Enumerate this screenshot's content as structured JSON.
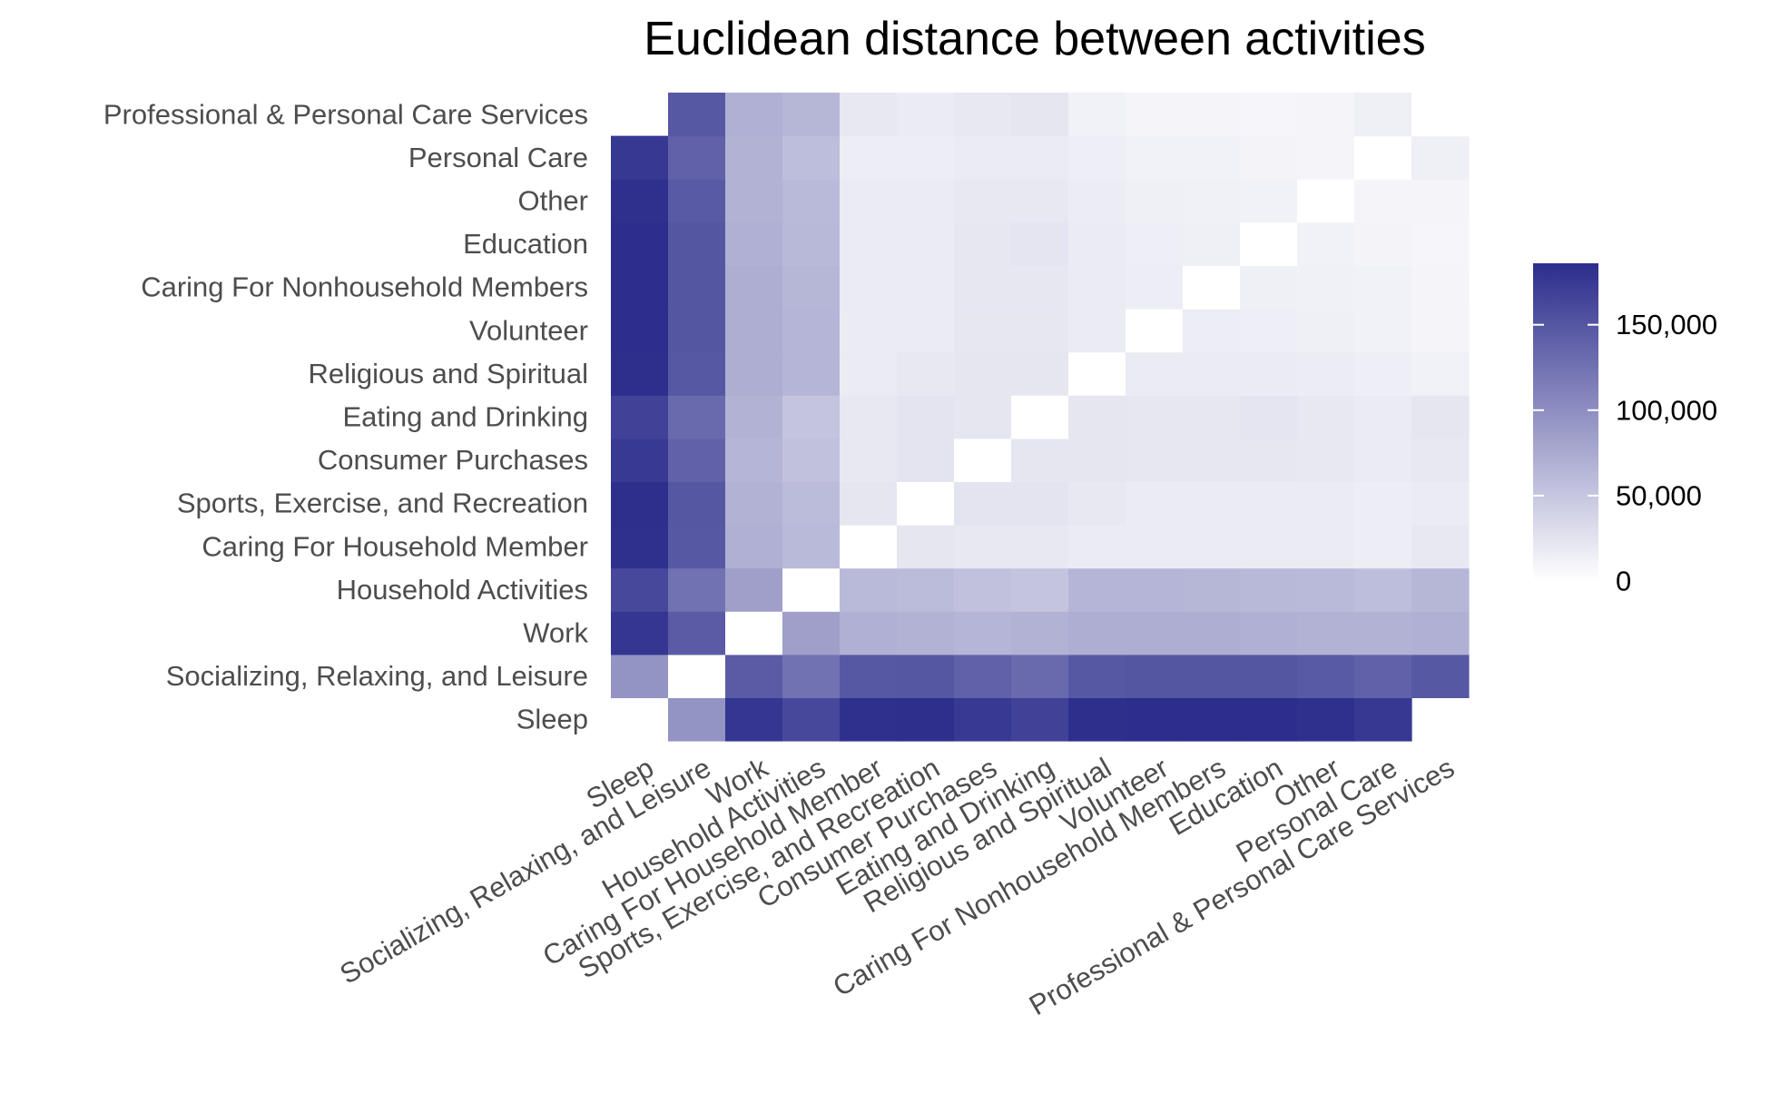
{
  "chart_data": {
    "type": "heatmap",
    "title": "Euclidean distance between activities",
    "xlabel": "",
    "ylabel": "",
    "grid": false,
    "legend_position": "right",
    "categories": [
      "Sleep",
      "Socializing, Relaxing, and Leisure",
      "Work",
      "Household Activities",
      "Caring For Household Member",
      "Sports, Exercise, and Recreation",
      "Consumer Purchases",
      "Eating and Drinking",
      "Religious and Spiritual",
      "Volunteer",
      "Caring For Nonhousehold Members",
      "Education",
      "Other",
      "Personal Care",
      "Professional & Personal Care Services"
    ],
    "values": [
      [
        0,
        95000,
        178000,
        162000,
        183000,
        184000,
        175000,
        168000,
        184000,
        186000,
        186000,
        186000,
        183000,
        176000,
        185000
      ],
      [
        95000,
        0,
        145000,
        125000,
        148000,
        149000,
        140000,
        132000,
        148000,
        150000,
        150000,
        150000,
        146000,
        140000,
        148000
      ],
      [
        178000,
        145000,
        0,
        85000,
        70000,
        68000,
        65000,
        68000,
        72000,
        72000,
        72000,
        70000,
        68000,
        68000,
        70000
      ],
      [
        162000,
        125000,
        85000,
        0,
        62000,
        60000,
        55000,
        52000,
        65000,
        65000,
        64000,
        63000,
        62000,
        58000,
        64000
      ],
      [
        183000,
        148000,
        70000,
        62000,
        0,
        22000,
        20000,
        20000,
        18000,
        18000,
        18000,
        18000,
        18000,
        16000,
        20000
      ],
      [
        184000,
        149000,
        68000,
        60000,
        22000,
        0,
        24000,
        24000,
        20000,
        18000,
        18000,
        18000,
        18000,
        16000,
        18000
      ],
      [
        175000,
        140000,
        65000,
        55000,
        20000,
        24000,
        0,
        22000,
        22000,
        21000,
        21000,
        21000,
        20000,
        18000,
        20000
      ],
      [
        168000,
        132000,
        68000,
        52000,
        20000,
        24000,
        22000,
        0,
        22000,
        21000,
        21000,
        23000,
        20000,
        18000,
        22000
      ],
      [
        184000,
        148000,
        72000,
        65000,
        18000,
        20000,
        22000,
        22000,
        0,
        18000,
        18000,
        18000,
        17000,
        15000,
        12000
      ],
      [
        186000,
        150000,
        72000,
        65000,
        18000,
        18000,
        21000,
        21000,
        18000,
        0,
        16000,
        15000,
        14000,
        12000,
        10000
      ],
      [
        186000,
        150000,
        72000,
        64000,
        18000,
        18000,
        21000,
        21000,
        18000,
        16000,
        0,
        14000,
        13000,
        12000,
        9000
      ],
      [
        186000,
        150000,
        70000,
        63000,
        18000,
        18000,
        21000,
        23000,
        18000,
        15000,
        14000,
        0,
        12000,
        11000,
        8000
      ],
      [
        183000,
        146000,
        68000,
        62000,
        18000,
        18000,
        20000,
        20000,
        17000,
        14000,
        13000,
        12000,
        0,
        9000,
        9000
      ],
      [
        176000,
        140000,
        68000,
        58000,
        16000,
        16000,
        18000,
        18000,
        15000,
        12000,
        12000,
        11000,
        9000,
        0,
        14000
      ],
      [
        185000,
        148000,
        70000,
        64000,
        20000,
        18000,
        20000,
        22000,
        12000,
        10000,
        9000,
        8000,
        9000,
        14000,
        0
      ]
    ],
    "missing_cells": [
      [
        0,
        14
      ],
      [
        14,
        0
      ]
    ],
    "value_range": [
      0,
      186000
    ],
    "colorscale": [
      "#ffffff",
      "#2c2d8c"
    ],
    "legend": {
      "ticks": [
        0,
        50000,
        100000,
        150000
      ],
      "tick_labels": [
        "0",
        "50,000",
        "100,000",
        "150,000"
      ]
    }
  }
}
